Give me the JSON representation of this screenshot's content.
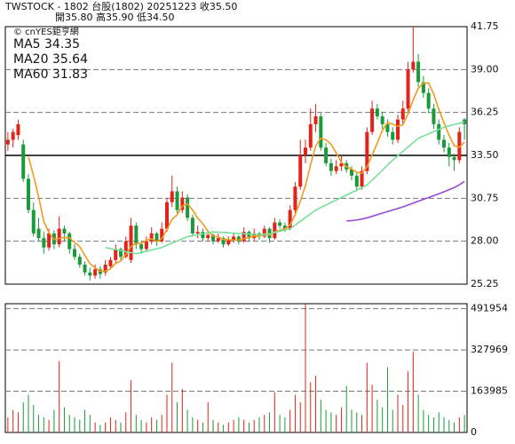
{
  "header": {
    "line1": "TWSTOCK - 1802  台股(1802) 20251223  收35.50",
    "line2": "開35.80  高35.90  低34.50"
  },
  "chart_data": {
    "type": "candlestick",
    "watermark": "© cnYES鉅亨網",
    "up_color": "#e2231a",
    "down_color": "#1a9a3a",
    "open": [
      34.2,
      34.5,
      34.8,
      34.2,
      32.0,
      30.0,
      28.8,
      28.2,
      27.6,
      28.5,
      27.8,
      28.8,
      28.5,
      27.5,
      27.0,
      26.5,
      26.0,
      25.8,
      26.2,
      26.0,
      26.4,
      26.8,
      27.5,
      27.0,
      26.8,
      29.0,
      27.8,
      27.5,
      28.0,
      28.5,
      28.0,
      28.8,
      30.5,
      31.2,
      30.0,
      30.8,
      29.5,
      28.5,
      28.6,
      28.2,
      28.4,
      28.0,
      28.2,
      27.8,
      28.1,
      28.3,
      28.0,
      28.6,
      28.2,
      28.5,
      28.3,
      28.8,
      28.2,
      29.2,
      29.0,
      28.8,
      30.0,
      31.5,
      33.5,
      34.0,
      35.5,
      36.0,
      34.0,
      33.0,
      32.5,
      32.8,
      33.0,
      32.6,
      32.2,
      31.5,
      32.5,
      35.0,
      36.5,
      36.0,
      35.5,
      35.0,
      34.5,
      35.8,
      36.5,
      39.0,
      39.5,
      38.2,
      37.5,
      36.5,
      35.5,
      34.5,
      34.0,
      33.4,
      33.2,
      35.8
    ],
    "high": [
      35.0,
      35.2,
      35.8,
      34.5,
      32.3,
      30.5,
      29.5,
      28.6,
      28.8,
      28.7,
      29.6,
      29.0,
      28.6,
      27.8,
      27.2,
      26.7,
      26.3,
      26.5,
      26.4,
      26.8,
      27.0,
      27.8,
      27.6,
      28.3,
      29.5,
      29.2,
      28.0,
      28.3,
      28.9,
      28.6,
      29.2,
      30.8,
      32.2,
      31.5,
      31.2,
      31.0,
      29.7,
      29.0,
      28.8,
      28.7,
      28.5,
      28.5,
      28.3,
      28.3,
      28.5,
      28.4,
      28.9,
      28.7,
      28.8,
      28.6,
      29.0,
      28.9,
      29.5,
      29.4,
      29.2,
      30.3,
      31.8,
      34.5,
      34.5,
      36.5,
      36.8,
      36.2,
      34.3,
      33.3,
      33.2,
      33.5,
      33.2,
      32.8,
      32.4,
      32.8,
      35.3,
      37.0,
      36.8,
      36.3,
      35.8,
      35.3,
      36.1,
      37.0,
      39.5,
      41.8,
      40.0,
      38.6,
      37.8,
      36.8,
      35.8,
      34.8,
      34.3,
      33.6,
      35.3,
      35.9
    ],
    "low": [
      33.8,
      34.0,
      34.5,
      31.8,
      29.8,
      28.3,
      28.0,
      27.2,
      27.4,
      27.5,
      27.6,
      28.0,
      27.2,
      26.8,
      26.3,
      25.8,
      25.5,
      25.6,
      25.6,
      25.8,
      26.2,
      26.6,
      26.8,
      26.9,
      26.6,
      27.5,
      27.2,
      27.3,
      27.8,
      27.7,
      27.9,
      28.6,
      30.2,
      29.8,
      29.8,
      29.3,
      28.3,
      28.2,
      28.0,
      28.0,
      27.8,
      27.9,
      27.6,
      27.7,
      27.9,
      27.8,
      27.9,
      28.0,
      28.0,
      28.1,
      28.2,
      27.9,
      28.1,
      28.8,
      28.6,
      28.7,
      29.8,
      31.3,
      33.0,
      33.8,
      35.0,
      33.8,
      32.8,
      32.2,
      32.3,
      32.5,
      32.4,
      31.9,
      31.2,
      31.3,
      32.3,
      34.8,
      35.8,
      35.2,
      34.7,
      34.2,
      34.3,
      35.5,
      36.3,
      38.8,
      37.9,
      37.2,
      36.2,
      35.2,
      34.2,
      33.7,
      32.8,
      32.5,
      33.0,
      34.5
    ],
    "close": [
      34.5,
      35.0,
      35.5,
      32.0,
      30.0,
      28.5,
      28.2,
      27.6,
      28.5,
      27.8,
      28.8,
      28.5,
      27.5,
      27.0,
      26.5,
      26.0,
      25.8,
      26.2,
      25.9,
      26.5,
      26.8,
      27.5,
      27.0,
      28.0,
      29.0,
      27.8,
      27.5,
      28.0,
      28.5,
      28.0,
      28.8,
      30.5,
      31.2,
      30.0,
      30.8,
      29.5,
      28.5,
      28.6,
      28.2,
      28.4,
      28.0,
      28.2,
      27.8,
      28.1,
      28.3,
      28.0,
      28.6,
      28.2,
      28.5,
      28.3,
      28.8,
      28.2,
      29.2,
      29.0,
      28.8,
      30.0,
      31.5,
      33.5,
      34.0,
      35.5,
      36.0,
      34.0,
      33.0,
      32.5,
      32.8,
      33.0,
      32.6,
      32.2,
      31.5,
      32.5,
      35.0,
      36.5,
      36.0,
      35.5,
      35.0,
      34.5,
      35.8,
      36.5,
      39.0,
      39.5,
      38.2,
      37.5,
      36.5,
      35.5,
      34.5,
      34.0,
      33.4,
      33.2,
      35.0,
      35.5
    ],
    "ylim": [
      25.25,
      41.75
    ],
    "yticks": [
      41.75,
      {
        "value": 39,
        "label": "39.00"
      },
      36.25,
      {
        "value": 33.5,
        "label": "33.50"
      },
      30.75,
      {
        "value": 28,
        "label": "28.00"
      },
      25.25
    ],
    "reference_line": 33.5,
    "grid": true,
    "series": [
      {
        "name": "MA5 34.35",
        "color": "#f29a1f",
        "values": [
          null,
          null,
          null,
          null,
          33.4,
          32.2,
          30.84,
          29.26,
          28.56,
          28.12,
          28.18,
          28.24,
          28.22,
          27.92,
          27.66,
          27.1,
          26.56,
          26.3,
          26.08,
          26.08,
          26.24,
          26.58,
          26.74,
          27.16,
          27.66,
          27.86,
          27.86,
          28.06,
          28.16,
          27.96,
          28.16,
          28.76,
          29.4,
          29.7,
          30.26,
          30.4,
          30.0,
          29.48,
          29.12,
          28.64,
          28.34,
          28.28,
          28.12,
          28.1,
          28.08,
          28.08,
          28.16,
          28.24,
          28.32,
          28.32,
          28.48,
          28.4,
          28.6,
          28.7,
          28.8,
          29.04,
          29.7,
          30.56,
          31.56,
          32.9,
          34.1,
          34.6,
          34.5,
          34.2,
          33.66,
          33.06,
          32.78,
          32.62,
          32.42,
          32.36,
          32.76,
          33.54,
          34.3,
          35.1,
          35.6,
          35.5,
          35.36,
          35.46,
          36.16,
          37.06,
          37.8,
          38.14,
          38.14,
          37.44,
          36.44,
          35.6,
          34.78,
          34.12,
          34.02,
          34.35
        ]
      },
      {
        "name": "MA20 35.64",
        "color": "#78e09a",
        "values": [
          null,
          null,
          null,
          null,
          null,
          null,
          null,
          null,
          null,
          null,
          null,
          null,
          null,
          null,
          null,
          null,
          null,
          null,
          null,
          27.6,
          27.53,
          27.47,
          27.4,
          27.33,
          27.27,
          27.2,
          27.28,
          27.36,
          27.44,
          27.52,
          27.6,
          27.74,
          27.88,
          28.02,
          28.16,
          28.3,
          28.36,
          28.42,
          28.48,
          28.54,
          28.6,
          28.58,
          28.56,
          28.54,
          28.52,
          28.5,
          28.48,
          28.46,
          28.44,
          28.42,
          28.4,
          28.48,
          28.56,
          28.64,
          28.72,
          28.8,
          29.04,
          29.28,
          29.52,
          29.76,
          30.0,
          30.16,
          30.32,
          30.48,
          30.64,
          30.8,
          30.96,
          31.12,
          31.28,
          31.44,
          31.6,
          31.92,
          32.24,
          32.56,
          32.88,
          33.2,
          33.48,
          33.76,
          34.04,
          34.32,
          34.6,
          34.74,
          34.88,
          35.02,
          35.16,
          35.3,
          35.39,
          35.47,
          35.56,
          35.64
        ]
      },
      {
        "name": "MA60 31.83",
        "color": "#9b4ad8",
        "values": [
          null,
          null,
          null,
          null,
          null,
          null,
          null,
          null,
          null,
          null,
          null,
          null,
          null,
          null,
          null,
          null,
          null,
          null,
          null,
          null,
          null,
          null,
          null,
          null,
          null,
          null,
          null,
          null,
          null,
          null,
          null,
          null,
          null,
          null,
          null,
          null,
          null,
          null,
          null,
          null,
          null,
          null,
          null,
          null,
          null,
          null,
          null,
          null,
          null,
          null,
          null,
          null,
          null,
          null,
          null,
          null,
          null,
          null,
          null,
          null,
          null,
          null,
          null,
          null,
          null,
          null,
          29.3,
          29.32,
          29.36,
          29.42,
          29.5,
          29.6,
          29.7,
          29.8,
          29.9,
          30.0,
          30.1,
          30.2,
          30.32,
          30.44,
          30.56,
          30.68,
          30.8,
          30.92,
          31.04,
          31.17,
          31.3,
          31.44,
          31.62,
          31.83
        ]
      }
    ],
    "volume": {
      "values": [
        60000,
        90000,
        80000,
        120000,
        150000,
        110000,
        70000,
        60000,
        50000,
        90000,
        284000,
        100000,
        70000,
        60000,
        50000,
        90000,
        70000,
        40000,
        30000,
        40000,
        60000,
        50000,
        40000,
        80000,
        208000,
        70000,
        50000,
        40000,
        60000,
        50000,
        70000,
        150000,
        277000,
        120000,
        173000,
        90000,
        60000,
        50000,
        40000,
        120000,
        50000,
        40000,
        30000,
        40000,
        50000,
        60000,
        50000,
        40000,
        50000,
        60000,
        70000,
        80000,
        160000,
        70000,
        60000,
        90000,
        150000,
        120000,
        512000,
        200000,
        225000,
        130000,
        90000,
        80000,
        70000,
        100000,
        185000,
        90000,
        80000,
        70000,
        277000,
        190000,
        130000,
        100000,
        260000,
        90000,
        150000,
        110000,
        243000,
        320000,
        150000,
        90000,
        70000,
        60000,
        80000,
        60000,
        50000,
        40000,
        60000,
        70000
      ],
      "ylim": [
        0,
        512000
      ],
      "yticks": [
        491954,
        327969,
        163985,
        0
      ]
    }
  }
}
